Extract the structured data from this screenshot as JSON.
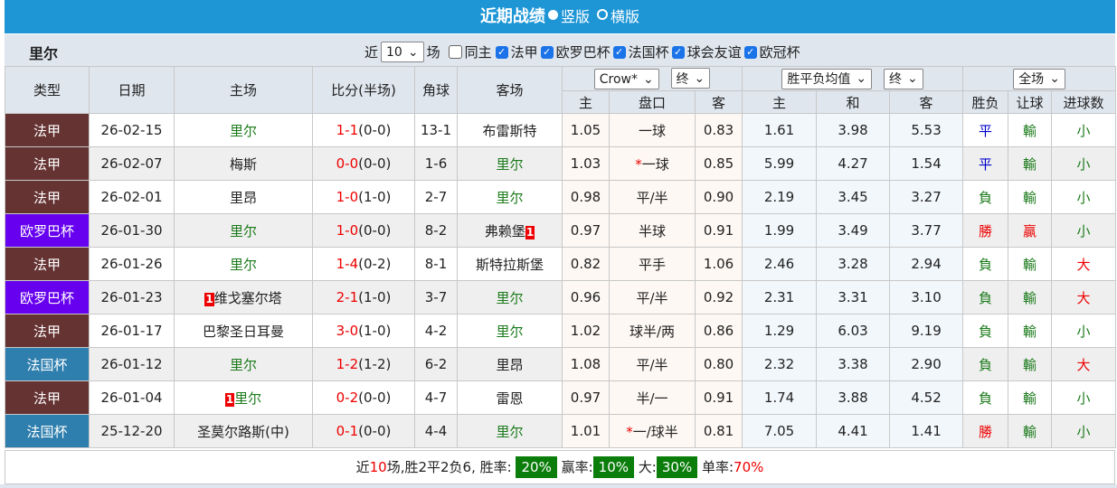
{
  "header": {
    "title": "近期战绩",
    "option_vertical": "竖版",
    "option_horizontal": "横版"
  },
  "filter": {
    "team": "里尔",
    "prefix": "近",
    "count": "10",
    "suffix": "场",
    "checks": [
      {
        "label": "同主",
        "checked": false
      },
      {
        "label": "法甲",
        "checked": true
      },
      {
        "label": "欧罗巴杯",
        "checked": true
      },
      {
        "label": "法国杯",
        "checked": true
      },
      {
        "label": "球会友谊",
        "checked": true
      },
      {
        "label": "欧冠杯",
        "checked": true
      }
    ]
  },
  "columns": {
    "type": "类型",
    "date": "日期",
    "home": "主场",
    "score": "比分(半场)",
    "corner": "角球",
    "away": "客场",
    "hc_home": "主",
    "hc_line": "盘口",
    "hc_away": "客",
    "eu_home": "主",
    "eu_draw": "和",
    "eu_away": "客",
    "wl": "胜负",
    "ah": "让球",
    "ou": "进球数"
  },
  "selects": {
    "company": "Crow*",
    "hc_stage": "终",
    "eu_type": "胜平负均值",
    "eu_stage": "终",
    "period": "全场"
  },
  "league_colors": {
    "法甲": "#663333",
    "欧罗巴杯": "#6600ee",
    "法国杯": "#2f7fae"
  },
  "rows": [
    {
      "type": "法甲",
      "date": "26-02-15",
      "home": "里尔",
      "home_rc": "",
      "score": "1-1",
      "half": "(0-0)",
      "corner": "13-1",
      "away": "布雷斯特",
      "away_rc": "",
      "hh": "1.05",
      "line_star": "",
      "line": "一球",
      "ha": "0.83",
      "eh": "1.61",
      "ed": "3.98",
      "ea": "5.53",
      "wl": "平",
      "ah": "輸",
      "ou": "小"
    },
    {
      "type": "法甲",
      "date": "26-02-07",
      "home": "梅斯",
      "home_rc": "",
      "score": "0-0",
      "half": "(0-0)",
      "corner": "1-6",
      "away": "里尔",
      "away_rc": "",
      "hh": "1.03",
      "line_star": "*",
      "line": "一球",
      "ha": "0.85",
      "eh": "5.99",
      "ed": "4.27",
      "ea": "1.54",
      "wl": "平",
      "ah": "輸",
      "ou": "小"
    },
    {
      "type": "法甲",
      "date": "26-02-01",
      "home": "里昂",
      "home_rc": "",
      "score": "1-0",
      "half": "(1-0)",
      "corner": "2-7",
      "away": "里尔",
      "away_rc": "",
      "hh": "0.98",
      "line_star": "",
      "line": "平/半",
      "ha": "0.90",
      "eh": "2.19",
      "ed": "3.45",
      "ea": "3.27",
      "wl": "負",
      "ah": "輸",
      "ou": "小"
    },
    {
      "type": "欧罗巴杯",
      "date": "26-01-30",
      "home": "里尔",
      "home_rc": "",
      "score": "1-0",
      "half": "(0-0)",
      "corner": "8-2",
      "away": "弗赖堡",
      "away_rc": "1",
      "hh": "0.97",
      "line_star": "",
      "line": "半球",
      "ha": "0.91",
      "eh": "1.99",
      "ed": "3.49",
      "ea": "3.77",
      "wl": "勝",
      "ah": "贏",
      "ou": "小"
    },
    {
      "type": "法甲",
      "date": "26-01-26",
      "home": "里尔",
      "home_rc": "",
      "score": "1-4",
      "half": "(0-2)",
      "corner": "8-1",
      "away": "斯特拉斯堡",
      "away_rc": "",
      "hh": "0.82",
      "line_star": "",
      "line": "平手",
      "ha": "1.06",
      "eh": "2.46",
      "ed": "3.28",
      "ea": "2.94",
      "wl": "負",
      "ah": "輸",
      "ou": "大"
    },
    {
      "type": "欧罗巴杯",
      "date": "26-01-23",
      "home": "维戈塞尔塔",
      "home_rc": "1",
      "score": "2-1",
      "half": "(1-0)",
      "corner": "3-7",
      "away": "里尔",
      "away_rc": "",
      "hh": "0.96",
      "line_star": "",
      "line": "平/半",
      "ha": "0.92",
      "eh": "2.31",
      "ed": "3.31",
      "ea": "3.10",
      "wl": "負",
      "ah": "輸",
      "ou": "大"
    },
    {
      "type": "法甲",
      "date": "26-01-17",
      "home": "巴黎圣日耳曼",
      "home_rc": "",
      "score": "3-0",
      "half": "(1-0)",
      "corner": "4-2",
      "away": "里尔",
      "away_rc": "",
      "hh": "1.02",
      "line_star": "",
      "line": "球半/两",
      "ha": "0.86",
      "eh": "1.29",
      "ed": "6.03",
      "ea": "9.19",
      "wl": "負",
      "ah": "輸",
      "ou": "小"
    },
    {
      "type": "法国杯",
      "date": "26-01-12",
      "home": "里尔",
      "home_rc": "",
      "score": "1-2",
      "half": "(1-2)",
      "corner": "6-2",
      "away": "里昂",
      "away_rc": "",
      "hh": "1.08",
      "line_star": "",
      "line": "平/半",
      "ha": "0.80",
      "eh": "2.32",
      "ed": "3.38",
      "ea": "2.90",
      "wl": "負",
      "ah": "輸",
      "ou": "大"
    },
    {
      "type": "法甲",
      "date": "26-01-04",
      "home": "里尔",
      "home_rc": "1",
      "score": "0-2",
      "half": "(0-0)",
      "corner": "4-7",
      "away": "雷恩",
      "away_rc": "",
      "hh": "0.97",
      "line_star": "",
      "line": "半/一",
      "ha": "0.91",
      "eh": "1.74",
      "ed": "3.88",
      "ea": "4.52",
      "wl": "負",
      "ah": "輸",
      "ou": "小"
    },
    {
      "type": "法国杯",
      "date": "25-12-20",
      "home": "圣莫尔路斯(中)",
      "home_rc": "",
      "score": "0-1",
      "half": "(0-0)",
      "corner": "4-4",
      "away": "里尔",
      "away_rc": "",
      "hh": "1.01",
      "line_star": "*",
      "line": "一/球半",
      "ha": "0.81",
      "eh": "7.05",
      "ed": "4.41",
      "ea": "1.41",
      "wl": "勝",
      "ah": "輸",
      "ou": "小"
    }
  ],
  "summary": {
    "t1": "近",
    "n": "10",
    "t2": "场,胜2平2负6, 胜率:",
    "win_rate": "20%",
    "t3": "赢率:",
    "ah_rate": "10%",
    "t4": "大:",
    "over_rate": "30%",
    "t5": "单率:",
    "odd_rate": "70%"
  }
}
